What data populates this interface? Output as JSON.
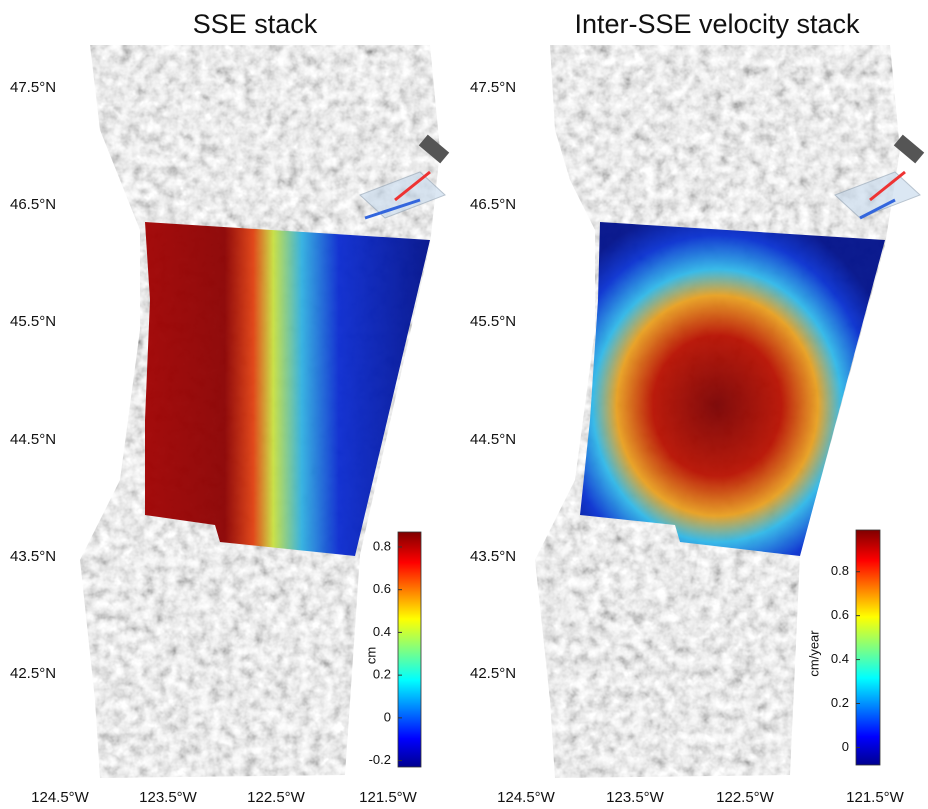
{
  "panels": [
    {
      "title": "SSE stack",
      "lat_labels": [
        "47.5°N",
        "46.5°N",
        "45.5°N",
        "44.5°N",
        "43.5°N",
        "42.5°N"
      ],
      "lon_labels": [
        "124.5°W",
        "123.5°W",
        "122.5°W",
        "121.5°W"
      ],
      "colorbar": {
        "label": "cm",
        "lim": [
          -0.23,
          0.87
        ],
        "ticks": [
          -0.2,
          0,
          0.2,
          0.4,
          0.6,
          0.8
        ]
      }
    },
    {
      "title": "Inter-SSE velocity stack",
      "lat_labels": [
        "47.5°N",
        "46.5°N",
        "45.5°N",
        "44.5°N",
        "43.5°N",
        "42.5°N"
      ],
      "lon_labels": [
        "124.5°W",
        "123.5°W",
        "122.5°W",
        "121.5°W"
      ],
      "colorbar": {
        "label": "cm/year",
        "lim": [
          -0.08,
          0.99
        ],
        "ticks": [
          0,
          0.2,
          0.4,
          0.6,
          0.8
        ]
      }
    }
  ]
}
